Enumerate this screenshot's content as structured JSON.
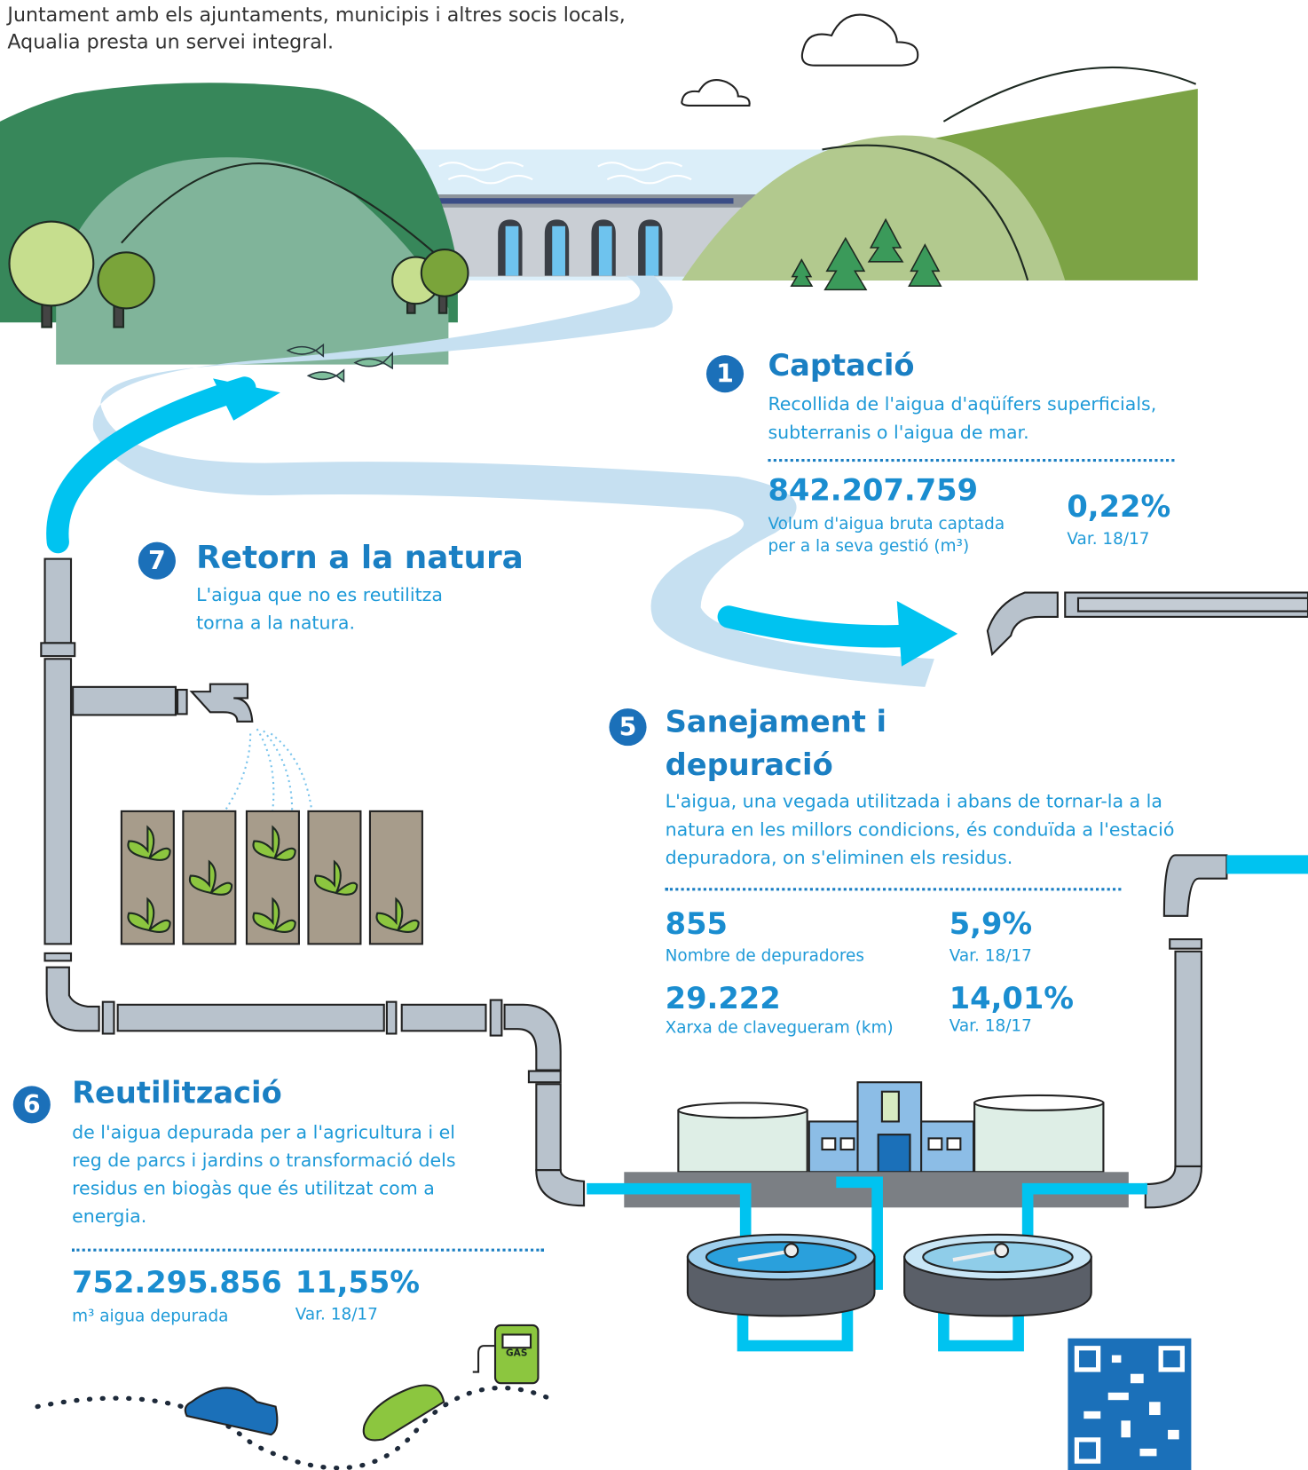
{
  "intro": "Juntament amb els ajuntaments, municipis i altres socis locals, Aqualia presta un servei integral.",
  "steps": [
    {
      "number": "1",
      "title": "Captació",
      "text": "Recollida de l'aigua d'aqüífers superficials, subterranis o l'aigua de mar.",
      "stats": [
        {
          "value": "842.207.759",
          "label": "Volum d'aigua bruta captada per a la seva gestió (m³)"
        },
        {
          "value": "0,22%",
          "label": "Var. 18/17"
        }
      ]
    },
    {
      "number": "7",
      "title": "Retorn a la natura",
      "text": "L'aigua que no es reutilitza torna a la natura."
    },
    {
      "number": "5",
      "title": "Sanejament i depuració",
      "text": "L'aigua, una vegada utilitzada i abans de tornar-la a la natura en les millors condicions, és conduïda a l'estació depuradora, on s'eliminen els residus.",
      "stats": [
        {
          "value": "855",
          "label": "Nombre de depuradores"
        },
        {
          "value": "5,9%",
          "label": "Var. 18/17"
        },
        {
          "value": "29.222",
          "label": "Xarxa de clavegueram (km)"
        },
        {
          "value": "14,01%",
          "label": "Var. 18/17"
        }
      ]
    },
    {
      "number": "6",
      "title": "Reutilització",
      "text": "de l'aigua depurada per a l'agricultura i el reg de parcs i jardins o transformació dels residus en biogàs que és utilitzat com a energia.",
      "stats": [
        {
          "value": "752.295.856",
          "label": "m³ aigua depurada"
        },
        {
          "value": "11,55%",
          "label": "Var. 18/17"
        }
      ]
    }
  ],
  "gas_label": "GAS"
}
